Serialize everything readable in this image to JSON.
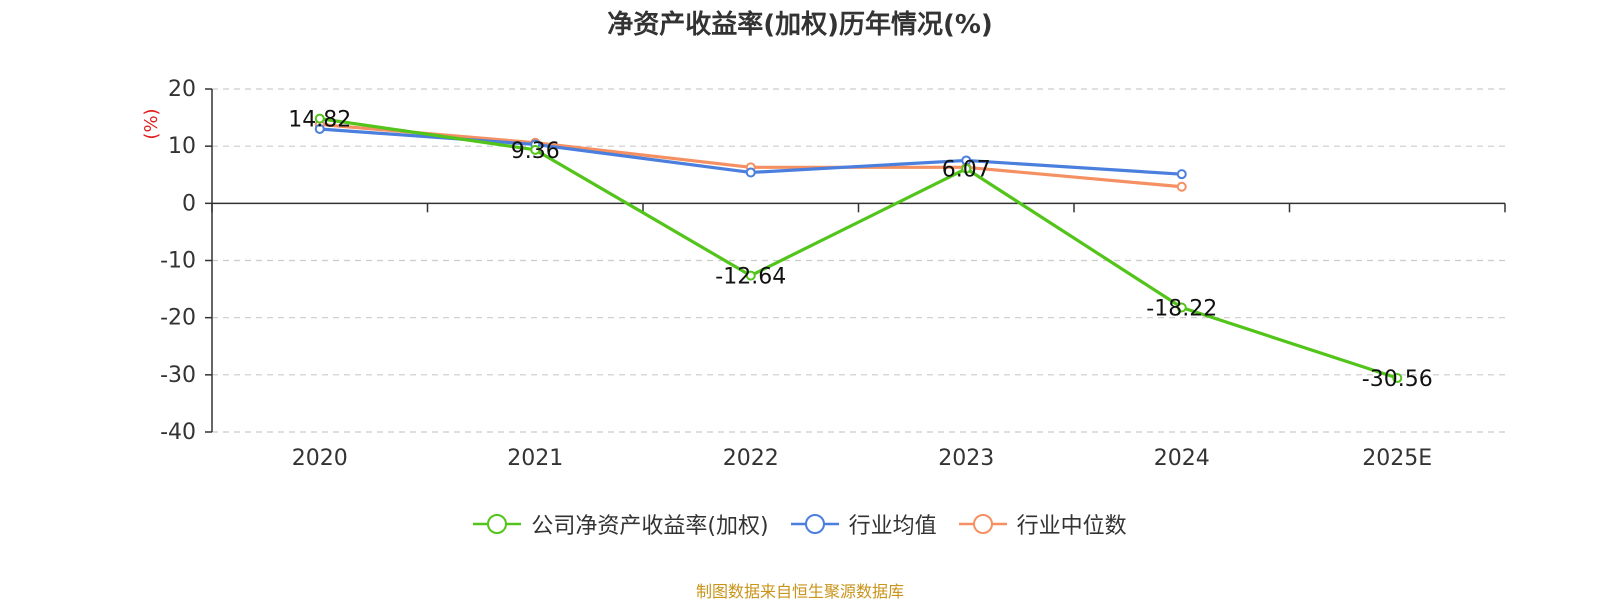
{
  "chart_data": {
    "type": "line",
    "title": "净资产收益率(加权)历年情况(%)",
    "ylabel": "(%)",
    "xlabel": "",
    "categories": [
      "2020",
      "2021",
      "2022",
      "2023",
      "2024",
      "2025E"
    ],
    "ylim": [
      -40,
      20
    ],
    "yticks": [
      20,
      10,
      0,
      -10,
      -20,
      -30,
      -40
    ],
    "grid": true,
    "legend_position": "bottom",
    "series": [
      {
        "name": "公司净资产收益率(加权)",
        "color": "#52c41a",
        "values": [
          14.82,
          9.36,
          -12.64,
          6.07,
          -18.22,
          -30.56
        ],
        "labels": [
          "14.82",
          "9.36",
          "-12.64",
          "6.07",
          "-18.22",
          "-30.56"
        ]
      },
      {
        "name": "行业均值",
        "color": "#4a7fde",
        "values": [
          13.0,
          10.3,
          5.4,
          7.5,
          5.1,
          null
        ]
      },
      {
        "name": "行业中位数",
        "color": "#f59062",
        "values": [
          13.8,
          10.6,
          6.3,
          6.3,
          2.9,
          null
        ]
      }
    ]
  },
  "source": "制图数据来自恒生聚源数据库"
}
